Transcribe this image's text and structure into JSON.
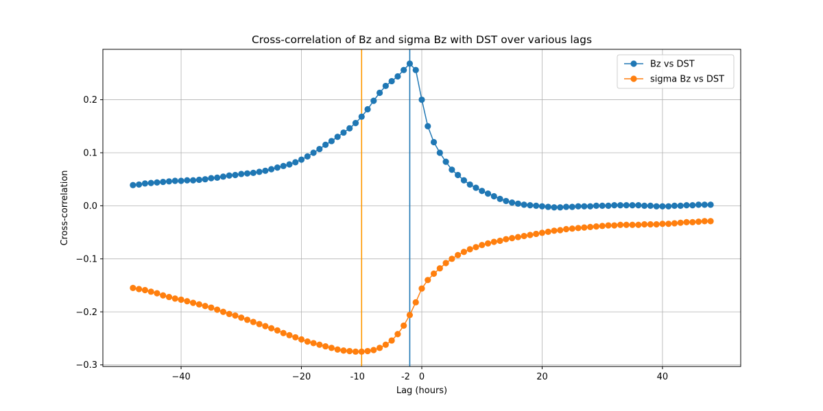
{
  "chart_data": {
    "type": "line",
    "title": "Cross-correlation of Bz and sigma Bz with DST over various lags",
    "xlabel": "Lag (hours)",
    "ylabel": "Cross-correlation",
    "xlim": [
      -53,
      53
    ],
    "ylim": [
      -0.303,
      0.295
    ],
    "xticks": [
      -40,
      -20,
      0,
      20,
      40
    ],
    "xtick_labels": [
      "−40",
      "−20",
      "0",
      "20",
      "40"
    ],
    "yticks": [
      -0.3,
      -0.2,
      -0.1,
      0.0,
      0.1,
      0.2
    ],
    "ytick_labels": [
      "−0.3",
      "−0.2",
      "−0.1",
      "0.0",
      "0.1",
      "0.2"
    ],
    "grid": true,
    "legend": "top-right",
    "x": [
      -48,
      -47,
      -46,
      -45,
      -44,
      -43,
      -42,
      -41,
      -40,
      -39,
      -38,
      -37,
      -36,
      -35,
      -34,
      -33,
      -32,
      -31,
      -30,
      -29,
      -28,
      -27,
      -26,
      -25,
      -24,
      -23,
      -22,
      -21,
      -20,
      -19,
      -18,
      -17,
      -16,
      -15,
      -14,
      -13,
      -12,
      -11,
      -10,
      -9,
      -8,
      -7,
      -6,
      -5,
      -4,
      -3,
      -2,
      -1,
      0,
      1,
      2,
      3,
      4,
      5,
      6,
      7,
      8,
      9,
      10,
      11,
      12,
      13,
      14,
      15,
      16,
      17,
      18,
      19,
      20,
      21,
      22,
      23,
      24,
      25,
      26,
      27,
      28,
      29,
      30,
      31,
      32,
      33,
      34,
      35,
      36,
      37,
      38,
      39,
      40,
      41,
      42,
      43,
      44,
      45,
      46,
      47,
      48
    ],
    "series": [
      {
        "name": "Bz vs DST",
        "color": "#1f77b4",
        "values": [
          0.039,
          0.04,
          0.042,
          0.043,
          0.044,
          0.045,
          0.046,
          0.047,
          0.047,
          0.048,
          0.048,
          0.049,
          0.05,
          0.052,
          0.053,
          0.055,
          0.057,
          0.058,
          0.06,
          0.061,
          0.062,
          0.064,
          0.066,
          0.069,
          0.072,
          0.075,
          0.078,
          0.082,
          0.087,
          0.093,
          0.1,
          0.107,
          0.115,
          0.122,
          0.13,
          0.138,
          0.146,
          0.156,
          0.168,
          0.182,
          0.198,
          0.213,
          0.226,
          0.235,
          0.244,
          0.256,
          0.268,
          0.256,
          0.2,
          0.15,
          0.12,
          0.1,
          0.083,
          0.068,
          0.058,
          0.048,
          0.04,
          0.034,
          0.028,
          0.023,
          0.018,
          0.013,
          0.009,
          0.006,
          0.004,
          0.002,
          0.001,
          0.0,
          -0.001,
          -0.002,
          -0.003,
          -0.003,
          -0.002,
          -0.002,
          -0.001,
          -0.001,
          -0.001,
          0.0,
          0.0,
          0.0,
          0.001,
          0.001,
          0.001,
          0.001,
          0.001,
          0.0,
          0.0,
          -0.001,
          -0.001,
          -0.001,
          0.0,
          0.0,
          0.001,
          0.001,
          0.002,
          0.002,
          0.002
        ]
      },
      {
        "name": "sigma Bz vs DST",
        "color": "#ff7f0e",
        "values": [
          -0.155,
          -0.157,
          -0.159,
          -0.162,
          -0.165,
          -0.169,
          -0.172,
          -0.175,
          -0.177,
          -0.18,
          -0.183,
          -0.186,
          -0.189,
          -0.192,
          -0.196,
          -0.2,
          -0.204,
          -0.207,
          -0.211,
          -0.215,
          -0.219,
          -0.223,
          -0.227,
          -0.231,
          -0.235,
          -0.24,
          -0.244,
          -0.248,
          -0.252,
          -0.256,
          -0.259,
          -0.262,
          -0.265,
          -0.268,
          -0.271,
          -0.273,
          -0.274,
          -0.275,
          -0.275,
          -0.274,
          -0.272,
          -0.268,
          -0.262,
          -0.254,
          -0.242,
          -0.226,
          -0.206,
          -0.182,
          -0.156,
          -0.14,
          -0.128,
          -0.118,
          -0.108,
          -0.1,
          -0.093,
          -0.087,
          -0.082,
          -0.078,
          -0.074,
          -0.071,
          -0.068,
          -0.066,
          -0.063,
          -0.061,
          -0.059,
          -0.057,
          -0.055,
          -0.053,
          -0.051,
          -0.049,
          -0.047,
          -0.046,
          -0.044,
          -0.043,
          -0.042,
          -0.041,
          -0.04,
          -0.039,
          -0.038,
          -0.037,
          -0.037,
          -0.036,
          -0.036,
          -0.036,
          -0.036,
          -0.035,
          -0.035,
          -0.035,
          -0.034,
          -0.034,
          -0.033,
          -0.032,
          -0.031,
          -0.031,
          -0.03,
          -0.029,
          -0.029
        ]
      }
    ],
    "vlines": [
      {
        "x": -2,
        "color": "#1f77b4",
        "label": "-2"
      },
      {
        "x": -10,
        "color": "#ff9900",
        "label": "-10"
      }
    ]
  }
}
